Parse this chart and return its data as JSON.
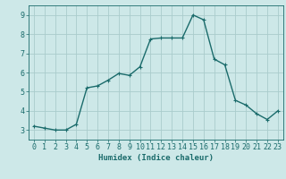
{
  "x": [
    0,
    1,
    2,
    3,
    4,
    5,
    6,
    7,
    8,
    9,
    10,
    11,
    12,
    13,
    14,
    15,
    16,
    17,
    18,
    19,
    20,
    21,
    22,
    23
  ],
  "y": [
    3.2,
    3.1,
    3.0,
    3.0,
    3.3,
    5.2,
    5.3,
    5.6,
    5.95,
    5.85,
    6.3,
    7.75,
    7.8,
    7.8,
    7.8,
    9.0,
    8.75,
    6.7,
    6.4,
    4.55,
    4.3,
    3.85,
    3.55,
    4.0
  ],
  "line_color": "#1a6b6b",
  "marker": "+",
  "marker_size": 3,
  "bg_color": "#cde8e8",
  "grid_color": "#aacccc",
  "xlabel": "Humidex (Indice chaleur)",
  "xlim": [
    -0.5,
    23.5
  ],
  "ylim": [
    2.5,
    9.5
  ],
  "yticks": [
    3,
    4,
    5,
    6,
    7,
    8,
    9
  ],
  "xtick_labels": [
    "0",
    "1",
    "2",
    "3",
    "4",
    "5",
    "6",
    "7",
    "8",
    "9",
    "10",
    "11",
    "12",
    "13",
    "14",
    "15",
    "16",
    "17",
    "18",
    "19",
    "20",
    "21",
    "22",
    "23"
  ],
  "xlabel_fontsize": 6.5,
  "tick_fontsize": 6,
  "line_width": 1.0
}
